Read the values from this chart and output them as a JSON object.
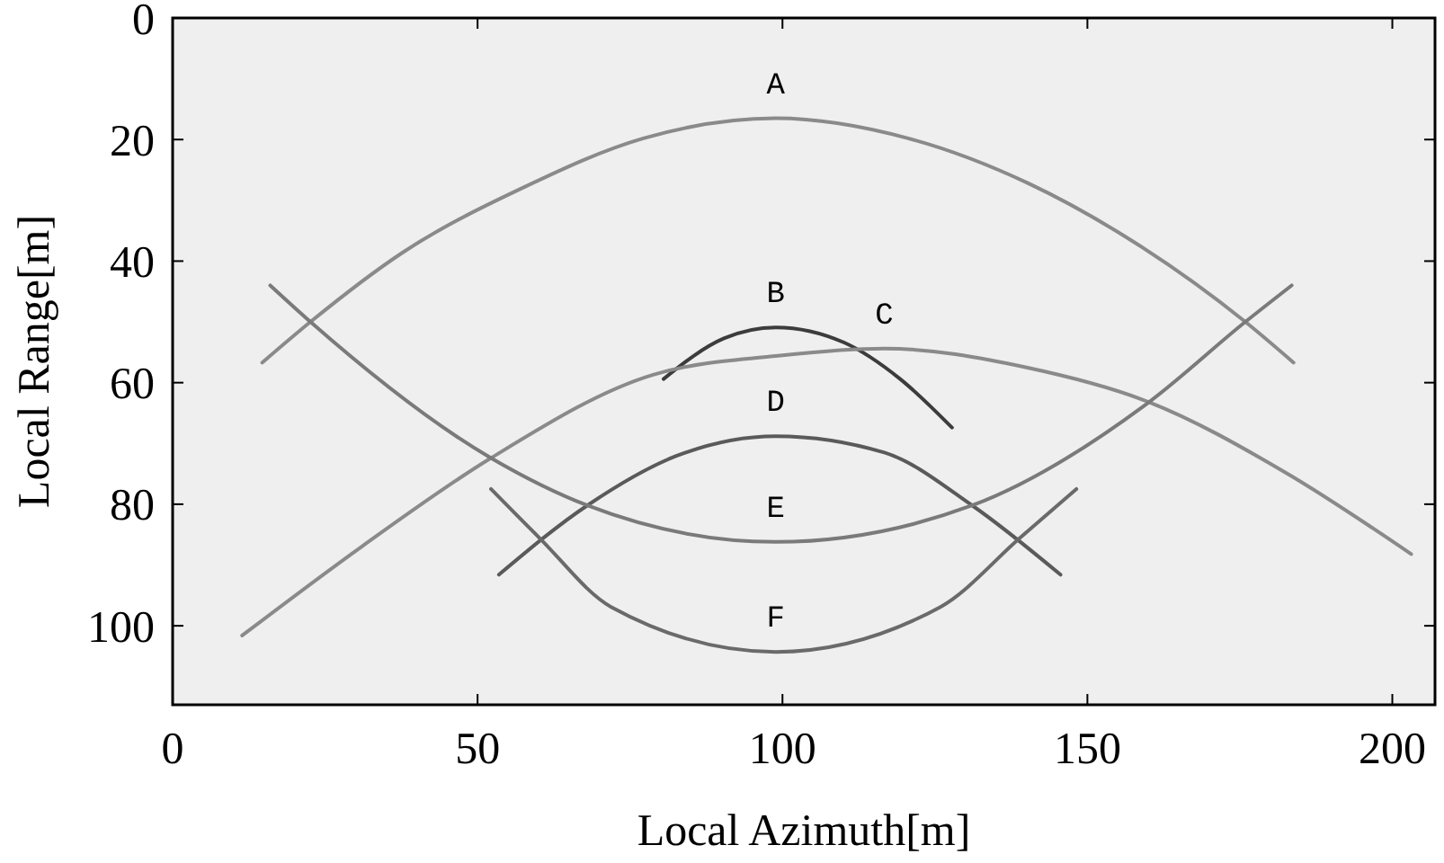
{
  "chart_data": {
    "type": "line",
    "xlabel": "Local Azimuth[m]",
    "ylabel": "Local Range[m]",
    "xlim": [
      0,
      207
    ],
    "ylim": [
      113,
      0
    ],
    "xticks": [
      0,
      50,
      100,
      150,
      200
    ],
    "yticks": [
      0,
      20,
      40,
      60,
      80,
      100
    ],
    "grid": false,
    "marker": "none",
    "line_style": "solid",
    "series": [
      {
        "name": "A",
        "color": "#8a8a8a",
        "x": [
          14.7,
          22.6,
          37.7,
          57.5,
          77.2,
          98.9,
          120.6,
          140.3,
          156.1,
          175.9,
          183.8
        ],
        "values": [
          56.7,
          50.0,
          38.6,
          27.9,
          19.8,
          16.5,
          19.8,
          27.2,
          35.9,
          50.0,
          56.7
        ]
      },
      {
        "name": "B",
        "color": "#3c3c3c",
        "x": [
          80.5,
          90.4,
          98.9,
          110.1,
          119.3,
          127.8
        ],
        "values": [
          59.4,
          52.7,
          50.9,
          53.4,
          59.4,
          67.4
        ]
      },
      {
        "name": "C",
        "color": "#8a8a8a",
        "x": [
          11.4,
          31.1,
          52.2,
          78.8,
          100,
          116.7,
          140,
          160.1,
          182.5,
          203.1
        ],
        "values": [
          101.6,
          86.9,
          72.4,
          58.7,
          55.5,
          54.4,
          57.5,
          63.2,
          74.8,
          88.2
        ]
      },
      {
        "name": "D",
        "color": "#5a5a5a",
        "x": [
          53.5,
          68.0,
          82.5,
          98.9,
          116.7,
          131.1,
          145.6
        ],
        "values": [
          91.6,
          80.2,
          72.1,
          68.8,
          71.5,
          80.2,
          91.6
        ]
      },
      {
        "name": "E",
        "color": "#7a7a7a",
        "x": [
          16.0,
          22.6,
          52.2,
          68.0,
          98.9,
          131.1,
          160.1,
          175.9,
          183.5
        ],
        "values": [
          44.0,
          50.0,
          72.4,
          80.2,
          86.2,
          80.2,
          63.2,
          50.0,
          44.0
        ]
      },
      {
        "name": "F",
        "color": "#6a6a6a",
        "x": [
          52.2,
          60.1,
          71.9,
          98.9,
          125.9,
          139.0,
          148.2
        ],
        "values": [
          77.5,
          85.5,
          96.9,
          104.3,
          96.9,
          85.5,
          77.5
        ]
      }
    ]
  }
}
